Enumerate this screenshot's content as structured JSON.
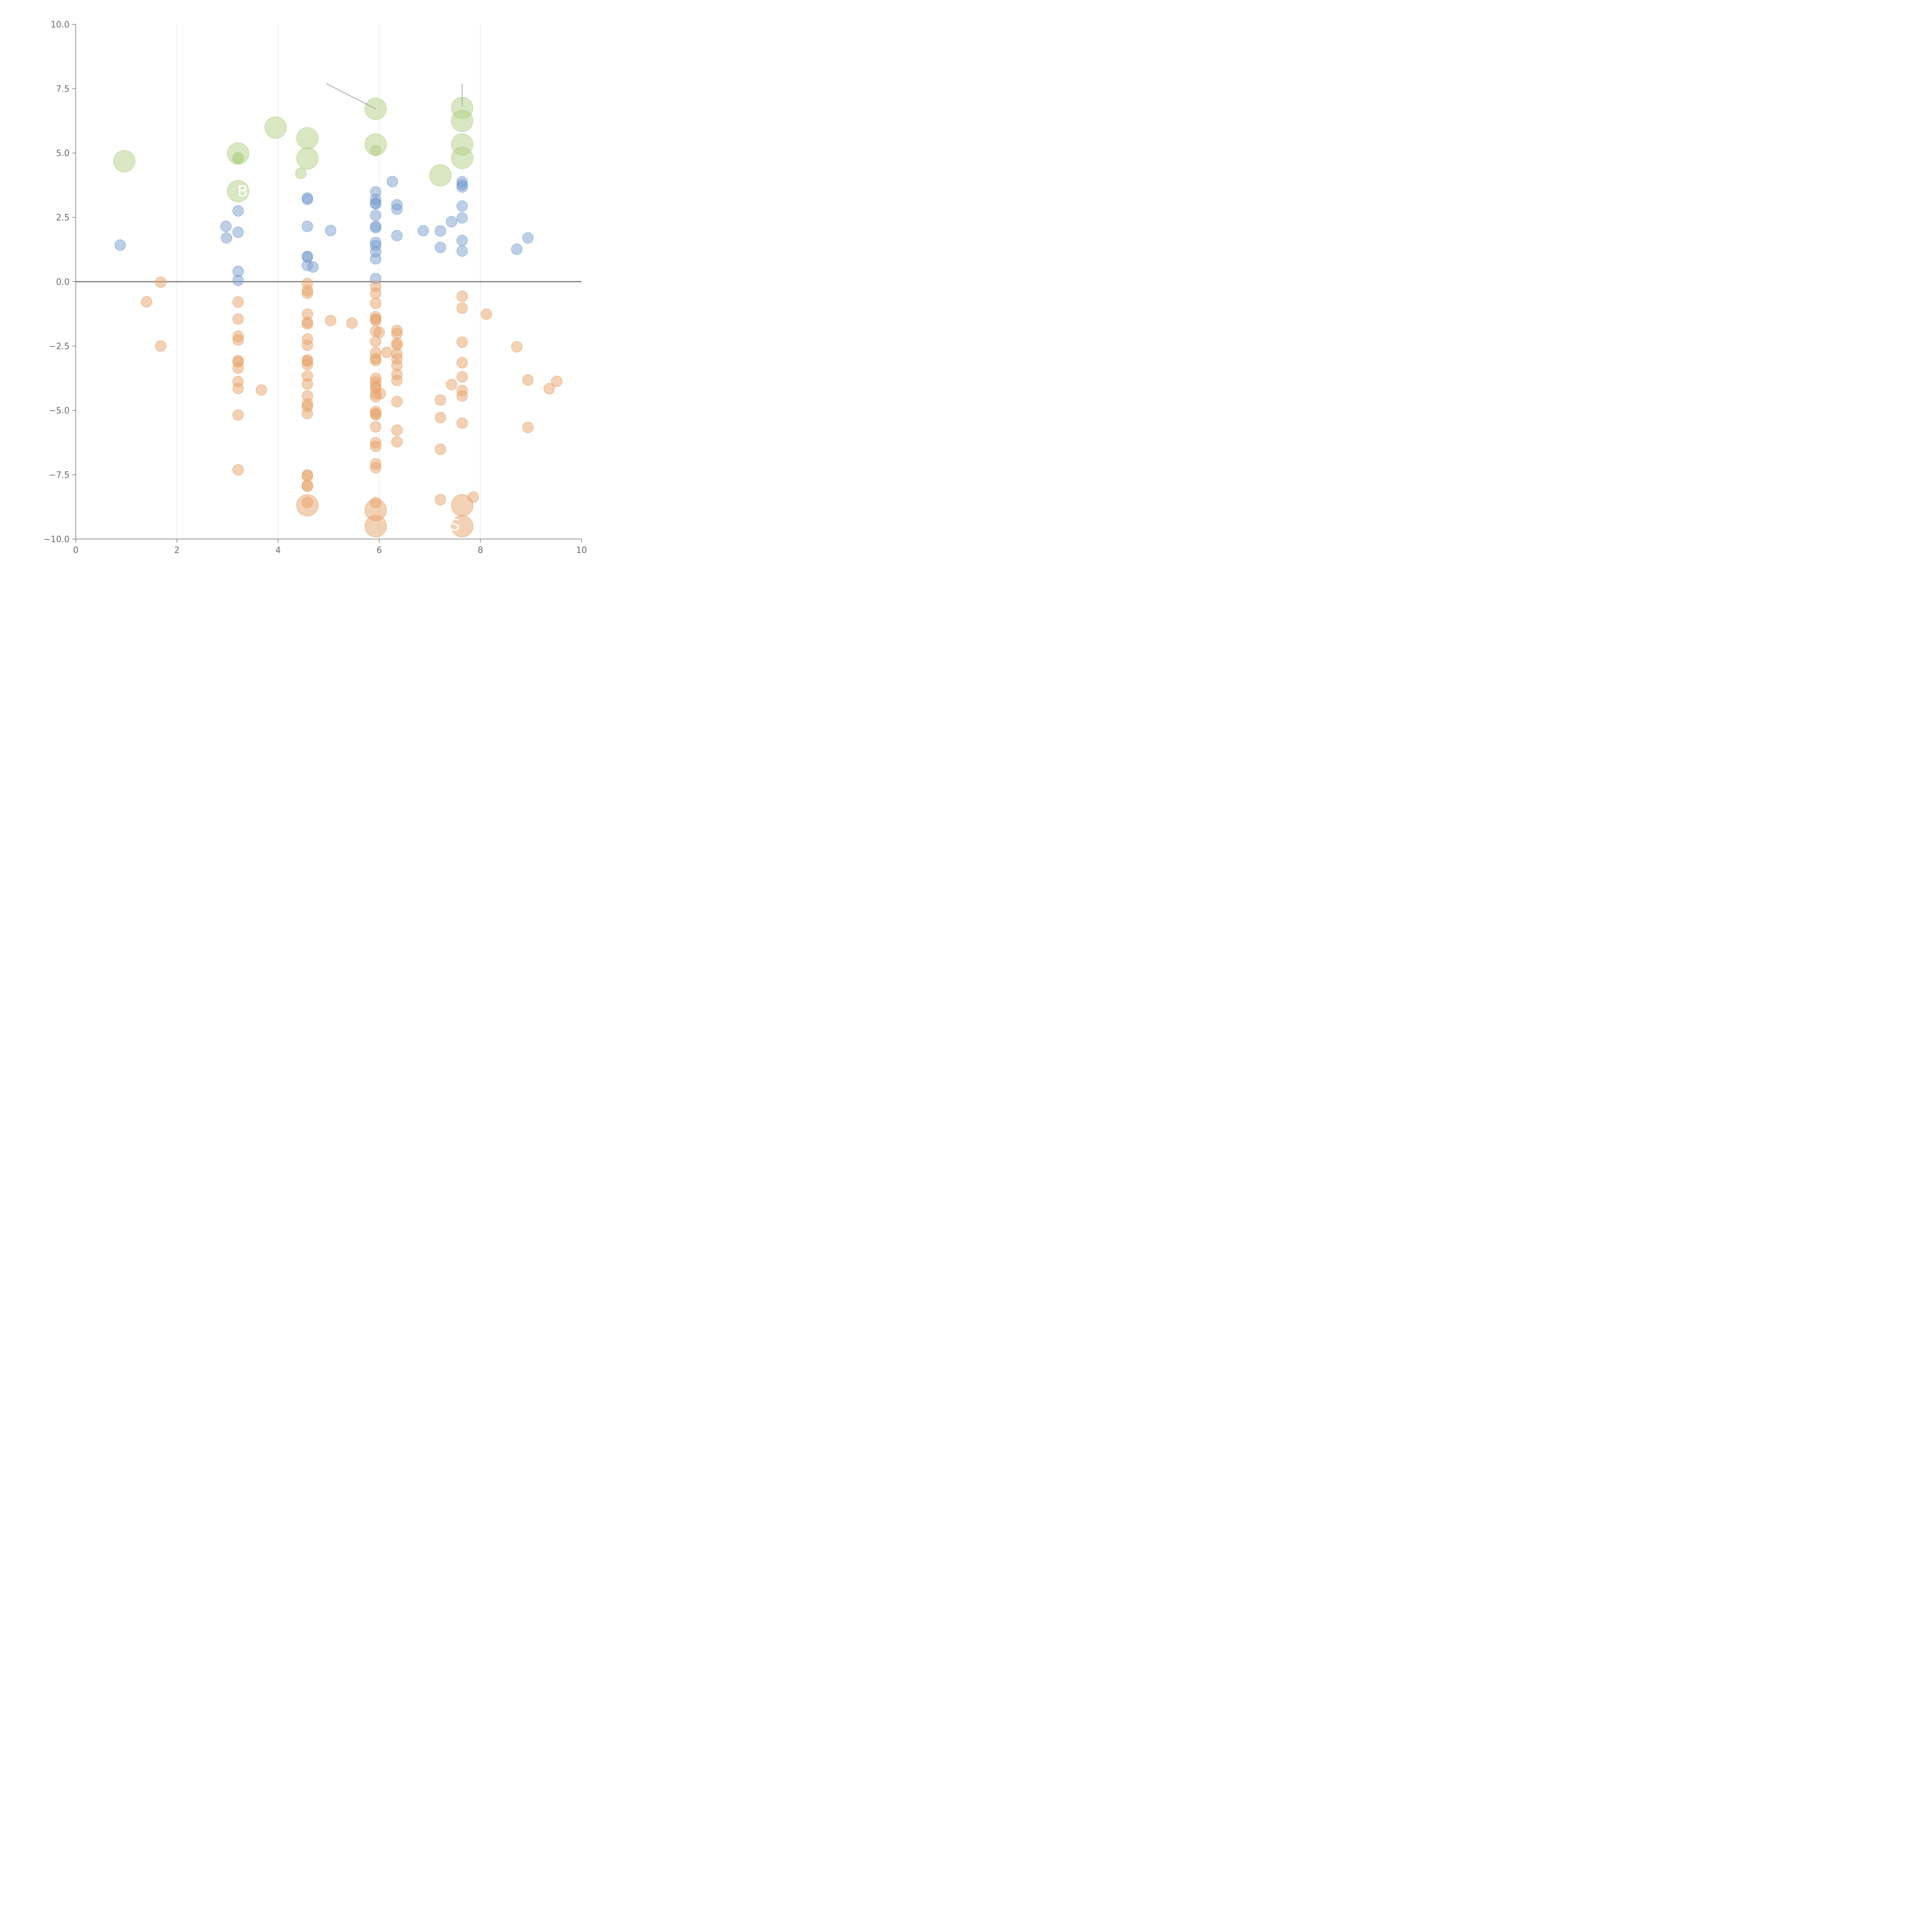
{
  "colors": {
    "blue": "#7a9fd0",
    "orange": "#e8a36b",
    "green": "#b3cf86",
    "axis": "#777777",
    "grid": "#dddddd",
    "zero_line": "#7a7a7a",
    "leader": "#aaaaaa"
  },
  "chart_data": {
    "type": "scatter",
    "title": "",
    "xlabel": "",
    "ylabel": "",
    "xlim": [
      0,
      10
    ],
    "ylim": [
      -10,
      10
    ],
    "x_ticks": [
      "0",
      "2",
      "4",
      "6",
      "8",
      "10"
    ],
    "y_ticks": [
      "10.0",
      "7.5",
      "5.0",
      "2.5",
      "0.0",
      "−2.5",
      "−5.0",
      "−7.5",
      "−10.0"
    ],
    "x_tick_values": [
      0,
      2,
      4,
      6,
      8,
      10
    ],
    "y_tick_values": [
      10,
      7.5,
      5,
      2.5,
      0,
      -2.5,
      -5,
      -7.5,
      -10
    ],
    "grid_x": [
      2,
      4,
      6,
      8
    ],
    "reference_line_y": 0,
    "series": [
      {
        "name": "positive",
        "color_key": "blue",
        "size": "small",
        "points": [
          [
            0.88,
            1.42
          ],
          [
            2.97,
            2.15
          ],
          [
            2.98,
            1.7
          ],
          [
            3.21,
            2.75
          ],
          [
            3.21,
            1.92
          ],
          [
            3.21,
            0.4
          ],
          [
            3.21,
            0.05
          ],
          [
            4.58,
            3.25
          ],
          [
            4.58,
            3.2
          ],
          [
            4.58,
            2.15
          ],
          [
            4.58,
            0.98
          ],
          [
            4.58,
            0.96
          ],
          [
            4.58,
            0.63
          ],
          [
            4.69,
            0.57
          ],
          [
            5.04,
            1.99
          ],
          [
            5.93,
            3.49
          ],
          [
            5.93,
            3.2
          ],
          [
            5.93,
            3.05
          ],
          [
            5.93,
            3.03
          ],
          [
            5.93,
            2.58
          ],
          [
            5.93,
            2.15
          ],
          [
            5.93,
            2.1
          ],
          [
            5.93,
            1.52
          ],
          [
            5.93,
            1.4
          ],
          [
            5.93,
            1.17
          ],
          [
            5.93,
            0.89
          ],
          [
            5.93,
            0.12
          ],
          [
            6.26,
            3.89
          ],
          [
            6.35,
            2.99
          ],
          [
            6.35,
            2.82
          ],
          [
            6.35,
            1.79
          ],
          [
            6.87,
            1.98
          ],
          [
            7.21,
            1.97
          ],
          [
            7.21,
            1.33
          ],
          [
            7.43,
            2.33
          ],
          [
            7.64,
            3.88
          ],
          [
            7.64,
            3.76
          ],
          [
            7.64,
            3.68
          ],
          [
            7.64,
            2.94
          ],
          [
            7.64,
            2.48
          ],
          [
            7.64,
            1.6
          ],
          [
            7.64,
            1.19
          ],
          [
            8.72,
            1.26
          ],
          [
            8.94,
            1.7
          ]
        ]
      },
      {
        "name": "negative",
        "color_key": "orange",
        "size": "small",
        "points": [
          [
            1.4,
            -0.78
          ],
          [
            1.68,
            -0.02
          ],
          [
            1.68,
            -2.5
          ],
          [
            3.21,
            -0.79
          ],
          [
            3.21,
            -1.45
          ],
          [
            3.21,
            -2.12
          ],
          [
            3.21,
            -2.27
          ],
          [
            3.21,
            -3.07
          ],
          [
            3.21,
            -3.11
          ],
          [
            3.21,
            -3.36
          ],
          [
            3.21,
            -3.88
          ],
          [
            3.21,
            -4.15
          ],
          [
            3.21,
            -5.18
          ],
          [
            3.21,
            -7.31
          ],
          [
            3.67,
            -4.21
          ],
          [
            4.58,
            -0.07
          ],
          [
            4.58,
            -0.35
          ],
          [
            4.58,
            -0.45
          ],
          [
            4.58,
            -1.26
          ],
          [
            4.58,
            -1.58
          ],
          [
            4.58,
            -1.64
          ],
          [
            4.58,
            -2.23
          ],
          [
            4.58,
            -2.47
          ],
          [
            4.58,
            -3.04
          ],
          [
            4.58,
            -3.09
          ],
          [
            4.58,
            -3.22
          ],
          [
            4.58,
            -3.67
          ],
          [
            4.58,
            -3.98
          ],
          [
            4.58,
            -4.44
          ],
          [
            4.58,
            -4.76
          ],
          [
            4.58,
            -4.85
          ],
          [
            4.58,
            -5.13
          ],
          [
            4.58,
            -7.51
          ],
          [
            4.58,
            -7.55
          ],
          [
            4.58,
            -7.9
          ],
          [
            4.58,
            -7.96
          ],
          [
            4.58,
            -8.58
          ],
          [
            5.04,
            -1.51
          ],
          [
            5.46,
            -1.61
          ],
          [
            5.93,
            -0.18
          ],
          [
            5.93,
            -0.45
          ],
          [
            5.93,
            -0.84
          ],
          [
            5.93,
            -1.36
          ],
          [
            5.93,
            -1.46
          ],
          [
            5.93,
            -1.5
          ],
          [
            5.93,
            -1.92
          ],
          [
            5.93,
            -2.32
          ],
          [
            5.93,
            -2.76
          ],
          [
            5.93,
            -2.99
          ],
          [
            5.93,
            -3.06
          ],
          [
            5.93,
            -3.76
          ],
          [
            5.93,
            -3.9
          ],
          [
            5.93,
            -4.07
          ],
          [
            5.93,
            -4.13
          ],
          [
            5.93,
            -4.36
          ],
          [
            5.93,
            -4.47
          ],
          [
            5.93,
            -5.05
          ],
          [
            5.93,
            -5.13
          ],
          [
            5.93,
            -5.17
          ],
          [
            5.93,
            -5.64
          ],
          [
            5.93,
            -6.26
          ],
          [
            5.93,
            -6.4
          ],
          [
            5.93,
            -7.08
          ],
          [
            5.93,
            -7.23
          ],
          [
            5.93,
            -8.58
          ],
          [
            6.0,
            -1.97
          ],
          [
            6.02,
            -4.35
          ],
          [
            6.15,
            -2.75
          ],
          [
            6.35,
            -1.9
          ],
          [
            6.35,
            -2.02
          ],
          [
            6.35,
            -2.39
          ],
          [
            6.35,
            -2.47
          ],
          [
            6.35,
            -2.8
          ],
          [
            6.35,
            -3.0
          ],
          [
            6.35,
            -3.25
          ],
          [
            6.35,
            -3.6
          ],
          [
            6.35,
            -3.84
          ],
          [
            6.35,
            -4.66
          ],
          [
            6.35,
            -5.77
          ],
          [
            6.35,
            -6.22
          ],
          [
            7.21,
            -4.6
          ],
          [
            7.21,
            -5.28
          ],
          [
            7.21,
            -6.51
          ],
          [
            7.21,
            -8.47
          ],
          [
            7.43,
            -4.0
          ],
          [
            7.64,
            -0.57
          ],
          [
            7.64,
            -1.03
          ],
          [
            7.64,
            -2.35
          ],
          [
            7.64,
            -3.15
          ],
          [
            7.64,
            -3.7
          ],
          [
            7.64,
            -4.23
          ],
          [
            7.64,
            -4.44
          ],
          [
            7.64,
            -5.5
          ],
          [
            7.86,
            -8.37
          ],
          [
            8.12,
            -1.26
          ],
          [
            8.72,
            -2.53
          ],
          [
            8.94,
            -3.82
          ],
          [
            8.94,
            -5.66
          ],
          [
            9.36,
            -4.16
          ],
          [
            9.51,
            -3.87
          ]
        ]
      },
      {
        "name": "labelled-positive",
        "color_key": "green",
        "size": "mixed",
        "points": [
          [
            0.96,
            4.68,
            "large"
          ],
          [
            3.21,
            4.98,
            "large"
          ],
          [
            3.21,
            4.82,
            "small"
          ],
          [
            3.21,
            4.78,
            "small"
          ],
          [
            3.21,
            3.52,
            "large"
          ],
          [
            3.95,
            5.99,
            "large"
          ],
          [
            4.45,
            4.21,
            "small"
          ],
          [
            4.58,
            5.57,
            "large"
          ],
          [
            4.58,
            4.79,
            "large"
          ],
          [
            5.93,
            6.72,
            "large"
          ],
          [
            5.93,
            5.33,
            "large"
          ],
          [
            5.93,
            5.1,
            "small"
          ],
          [
            7.21,
            4.13,
            "large"
          ],
          [
            7.64,
            6.75,
            "large"
          ],
          [
            7.64,
            6.25,
            "large"
          ],
          [
            7.64,
            5.33,
            "large"
          ],
          [
            7.64,
            4.81,
            "large"
          ]
        ]
      },
      {
        "name": "labelled-negative",
        "color_key": "orange",
        "size": "large",
        "points": [
          [
            4.58,
            -8.69
          ],
          [
            5.93,
            -8.87
          ],
          [
            5.93,
            -9.5
          ],
          [
            7.64,
            -8.69
          ],
          [
            7.64,
            -9.5
          ]
        ]
      }
    ],
    "annotations": [
      {
        "text": "B",
        "x": 3.3,
        "y": 3.52
      },
      {
        "text": "S",
        "x": 7.5,
        "y": -9.45
      }
    ],
    "leader_lines": [
      [
        [
          4.95,
          7.7
        ],
        [
          5.93,
          6.72
        ]
      ],
      [
        [
          7.64,
          7.7
        ],
        [
          7.64,
          6.8
        ]
      ]
    ]
  }
}
